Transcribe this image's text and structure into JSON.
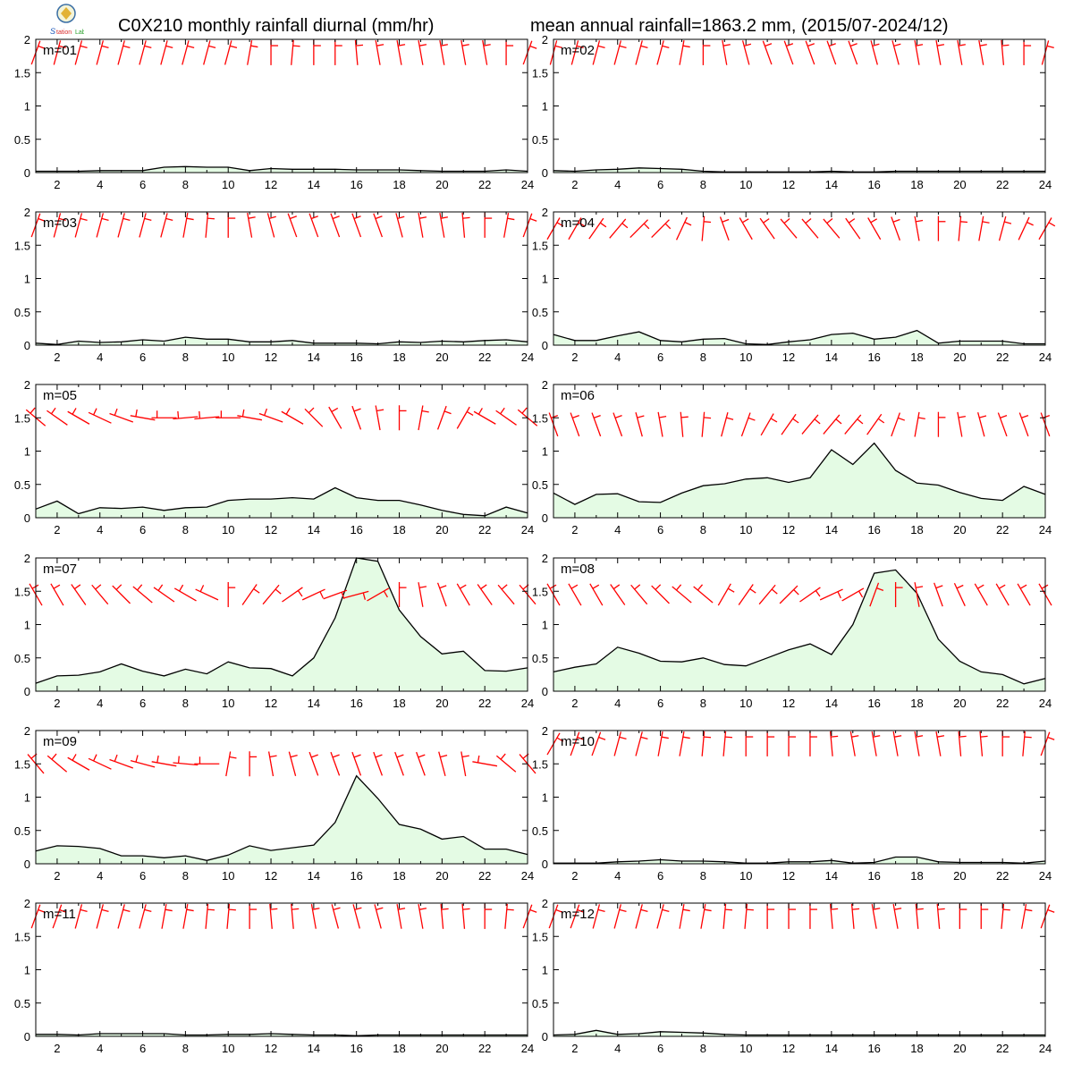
{
  "header": {
    "title_left": "C0X210 monthly rainfall diurnal (mm/hr)",
    "title_right": "mean annual rainfall=1863.2 mm, (2015/07-2024/12)"
  },
  "colors": {
    "fill": "#e4fbe4",
    "line": "#000000",
    "wind": "#ff0000"
  },
  "chart_data": {
    "type": "area",
    "x": [
      1,
      2,
      3,
      4,
      5,
      6,
      7,
      8,
      9,
      10,
      11,
      12,
      13,
      14,
      15,
      16,
      17,
      18,
      19,
      20,
      21,
      22,
      23,
      24
    ],
    "xlim": [
      1,
      24
    ],
    "ylim": [
      0,
      2
    ],
    "xticks": [
      2,
      4,
      6,
      8,
      10,
      12,
      14,
      16,
      18,
      20,
      22,
      24
    ],
    "yticks": [
      0,
      0.5,
      1,
      1.5,
      2
    ],
    "ytick_labels": [
      "0",
      "0.5",
      "1",
      "1.5",
      "2"
    ],
    "grid": false,
    "panels": [
      {
        "label": "m=01",
        "wind_level": 1.8,
        "values": [
          0.02,
          0.02,
          0.02,
          0.03,
          0.03,
          0.03,
          0.08,
          0.09,
          0.08,
          0.08,
          0.03,
          0.06,
          0.05,
          0.05,
          0.05,
          0.04,
          0.04,
          0.04,
          0.03,
          0.02,
          0.02,
          0.02,
          0.04,
          0.02
        ],
        "wind_dir": [
          200,
          195,
          195,
          195,
          195,
          195,
          195,
          195,
          195,
          195,
          190,
          180,
          185,
          180,
          180,
          175,
          170,
          170,
          170,
          170,
          170,
          170,
          180,
          200
        ]
      },
      {
        "label": "m=02",
        "wind_level": 1.8,
        "values": [
          0.03,
          0.02,
          0.04,
          0.05,
          0.07,
          0.06,
          0.05,
          0.02,
          0.01,
          0.01,
          0.01,
          0.01,
          0.01,
          0.02,
          0.01,
          0.01,
          0.02,
          0.02,
          0.02,
          0.02,
          0.02,
          0.02,
          0.02,
          0.02
        ],
        "wind_dir": [
          195,
          195,
          195,
          195,
          195,
          195,
          190,
          180,
          170,
          165,
          160,
          160,
          160,
          160,
          160,
          165,
          165,
          170,
          170,
          170,
          170,
          175,
          180,
          195
        ]
      },
      {
        "label": "m=03",
        "wind_level": 1.8,
        "values": [
          0.03,
          0.01,
          0.06,
          0.04,
          0.05,
          0.08,
          0.06,
          0.12,
          0.09,
          0.09,
          0.05,
          0.05,
          0.07,
          0.03,
          0.03,
          0.03,
          0.02,
          0.05,
          0.04,
          0.06,
          0.05,
          0.07,
          0.08,
          0.05
        ],
        "wind_dir": [
          200,
          195,
          195,
          195,
          195,
          195,
          195,
          190,
          185,
          180,
          170,
          165,
          160,
          160,
          160,
          160,
          160,
          165,
          170,
          170,
          175,
          180,
          190,
          200
        ]
      },
      {
        "label": "m=04",
        "wind_level": 1.75,
        "values": [
          0.16,
          0.07,
          0.07,
          0.14,
          0.2,
          0.07,
          0.05,
          0.09,
          0.1,
          0.02,
          0.01,
          0.05,
          0.08,
          0.16,
          0.18,
          0.09,
          0.12,
          0.22,
          0.03,
          0.06,
          0.06,
          0.06,
          0.02,
          0.02
        ],
        "wind_dir": [
          210,
          210,
          215,
          220,
          225,
          225,
          205,
          185,
          160,
          150,
          145,
          140,
          140,
          140,
          145,
          150,
          160,
          170,
          180,
          185,
          190,
          195,
          205,
          210
        ]
      },
      {
        "label": "m=05",
        "wind_level": 1.5,
        "values": [
          0.13,
          0.25,
          0.06,
          0.15,
          0.14,
          0.16,
          0.11,
          0.15,
          0.16,
          0.26,
          0.28,
          0.28,
          0.3,
          0.28,
          0.45,
          0.3,
          0.26,
          0.26,
          0.19,
          0.11,
          0.05,
          0.03,
          0.16,
          0.07
        ],
        "wind_dir": [
          130,
          125,
          120,
          115,
          110,
          100,
          90,
          85,
          85,
          90,
          100,
          110,
          120,
          135,
          150,
          160,
          170,
          180,
          190,
          200,
          210,
          120,
          125,
          130
        ]
      },
      {
        "label": "m=06",
        "wind_level": 1.4,
        "values": [
          0.37,
          0.2,
          0.35,
          0.36,
          0.24,
          0.23,
          0.37,
          0.48,
          0.51,
          0.58,
          0.6,
          0.53,
          0.6,
          1.02,
          0.8,
          1.12,
          0.71,
          0.52,
          0.49,
          0.38,
          0.29,
          0.26,
          0.47,
          0.35
        ],
        "wind_dir": [
          160,
          160,
          160,
          160,
          165,
          170,
          175,
          185,
          195,
          200,
          210,
          215,
          220,
          220,
          220,
          215,
          200,
          190,
          180,
          170,
          165,
          160,
          160,
          160
        ]
      },
      {
        "label": "m=07",
        "wind_level": 1.45,
        "values": [
          0.12,
          0.23,
          0.24,
          0.29,
          0.41,
          0.3,
          0.23,
          0.33,
          0.26,
          0.44,
          0.35,
          0.34,
          0.23,
          0.5,
          1.1,
          2.0,
          1.95,
          1.22,
          0.82,
          0.56,
          0.6,
          0.31,
          0.3,
          0.35
        ],
        "wind_dir": [
          150,
          150,
          145,
          140,
          135,
          130,
          125,
          120,
          115,
          180,
          215,
          220,
          235,
          245,
          250,
          255,
          240,
          180,
          170,
          160,
          150,
          145,
          140,
          140
        ]
      },
      {
        "label": "m=08",
        "wind_level": 1.45,
        "values": [
          0.29,
          0.36,
          0.41,
          0.66,
          0.57,
          0.45,
          0.44,
          0.5,
          0.4,
          0.38,
          0.5,
          0.62,
          0.71,
          0.55,
          1.0,
          1.77,
          1.82,
          1.47,
          0.78,
          0.45,
          0.29,
          0.25,
          0.11,
          0.19
        ],
        "wind_dir": [
          150,
          150,
          150,
          145,
          140,
          135,
          130,
          130,
          210,
          215,
          220,
          225,
          235,
          245,
          240,
          200,
          180,
          170,
          160,
          155,
          150,
          150,
          150,
          150
        ]
      },
      {
        "label": "m=09",
        "wind_level": 1.5,
        "values": [
          0.19,
          0.27,
          0.26,
          0.23,
          0.12,
          0.12,
          0.09,
          0.12,
          0.05,
          0.13,
          0.27,
          0.2,
          0.24,
          0.28,
          0.62,
          1.32,
          0.98,
          0.59,
          0.52,
          0.37,
          0.41,
          0.22,
          0.22,
          0.14
        ],
        "wind_dir": [
          140,
          130,
          120,
          115,
          110,
          105,
          100,
          95,
          90,
          190,
          180,
          170,
          165,
          160,
          160,
          160,
          160,
          160,
          160,
          165,
          170,
          100,
          130,
          140
        ]
      },
      {
        "label": "m=10",
        "wind_level": 1.8,
        "values": [
          0.01,
          0.01,
          0.01,
          0.03,
          0.04,
          0.06,
          0.04,
          0.04,
          0.03,
          0.01,
          0.01,
          0.03,
          0.03,
          0.05,
          0.01,
          0.02,
          0.1,
          0.1,
          0.03,
          0.02,
          0.02,
          0.02,
          0.01,
          0.04
        ],
        "wind_dir": [
          210,
          200,
          200,
          195,
          195,
          190,
          190,
          185,
          185,
          180,
          180,
          180,
          180,
          175,
          170,
          170,
          170,
          170,
          170,
          175,
          175,
          180,
          185,
          200
        ]
      },
      {
        "label": "m=11",
        "wind_level": 1.8,
        "values": [
          0.03,
          0.03,
          0.02,
          0.04,
          0.04,
          0.04,
          0.04,
          0.02,
          0.02,
          0.03,
          0.03,
          0.04,
          0.03,
          0.02,
          0.02,
          0.01,
          0.02,
          0.02,
          0.02,
          0.02,
          0.02,
          0.02,
          0.02,
          0.02
        ],
        "wind_dir": [
          200,
          200,
          195,
          195,
          195,
          195,
          190,
          190,
          185,
          185,
          180,
          175,
          175,
          170,
          165,
          165,
          165,
          170,
          170,
          175,
          175,
          180,
          185,
          200
        ]
      },
      {
        "label": "m=12",
        "wind_level": 1.8,
        "values": [
          0.02,
          0.03,
          0.09,
          0.03,
          0.04,
          0.07,
          0.06,
          0.05,
          0.03,
          0.02,
          0.02,
          0.02,
          0.02,
          0.02,
          0.02,
          0.02,
          0.02,
          0.02,
          0.02,
          0.02,
          0.02,
          0.02,
          0.02,
          0.02
        ],
        "wind_dir": [
          200,
          200,
          195,
          195,
          195,
          195,
          190,
          190,
          185,
          185,
          180,
          180,
          180,
          175,
          175,
          170,
          170,
          175,
          175,
          180,
          180,
          185,
          190,
          200
        ]
      }
    ]
  }
}
